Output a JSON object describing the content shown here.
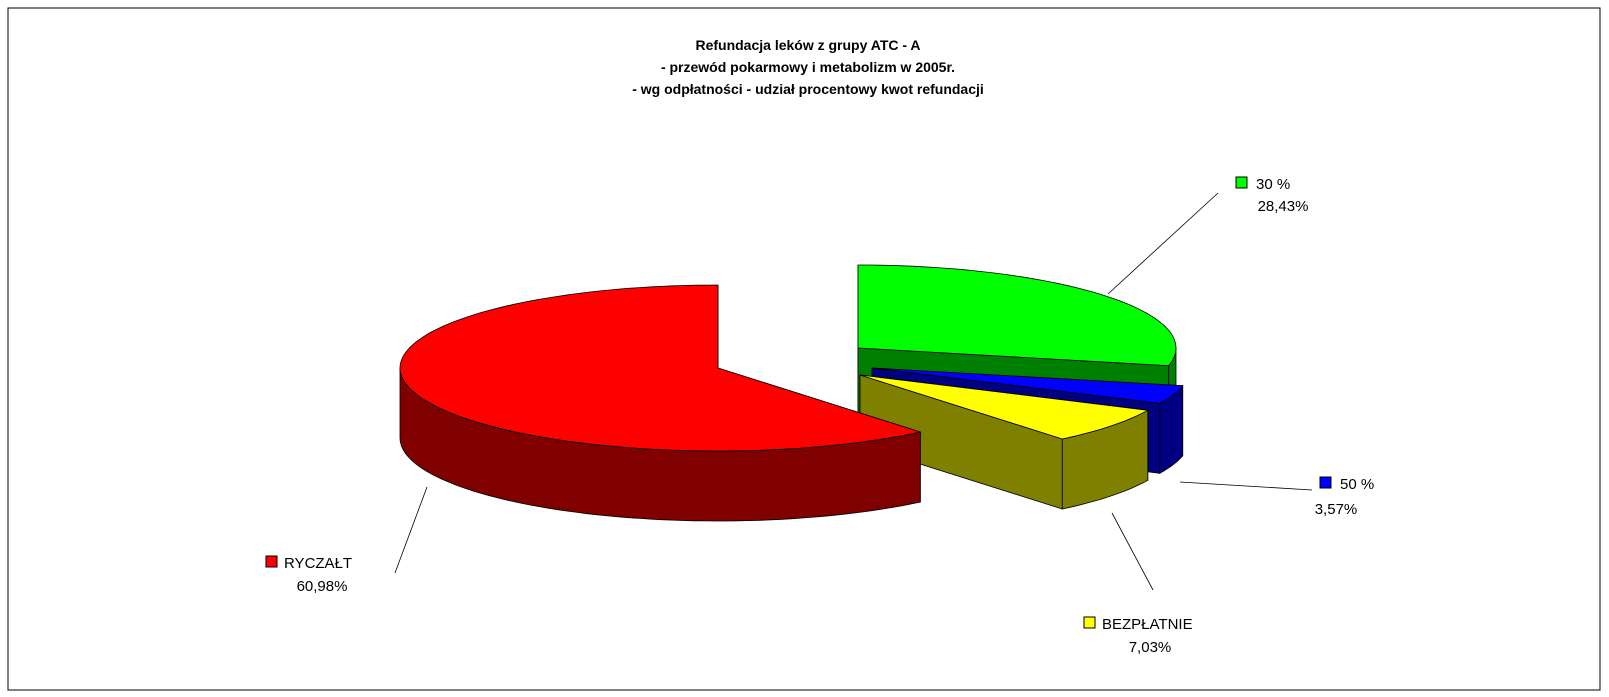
{
  "chart_data": {
    "type": "pie",
    "title": [
      "Refundacja leków z grupy ATC - A",
      "- przewód pokarmowy i metabolizm w 2005r.",
      "- wg odpłatności - udział procentowy kwot refundacji"
    ],
    "categories": [
      "30 %",
      "50 %",
      "BEZPŁATNIE",
      "RYCZAŁT"
    ],
    "values": [
      28.43,
      3.57,
      7.03,
      60.98
    ],
    "value_labels": [
      "28,43%",
      "3,57%",
      "7,03%",
      "60,98%"
    ],
    "colors": [
      "#00ff00",
      "#0000ff",
      "#ffff00",
      "#ff0000"
    ],
    "side_colors": [
      "#008000",
      "#000080",
      "#808000",
      "#800000"
    ]
  }
}
